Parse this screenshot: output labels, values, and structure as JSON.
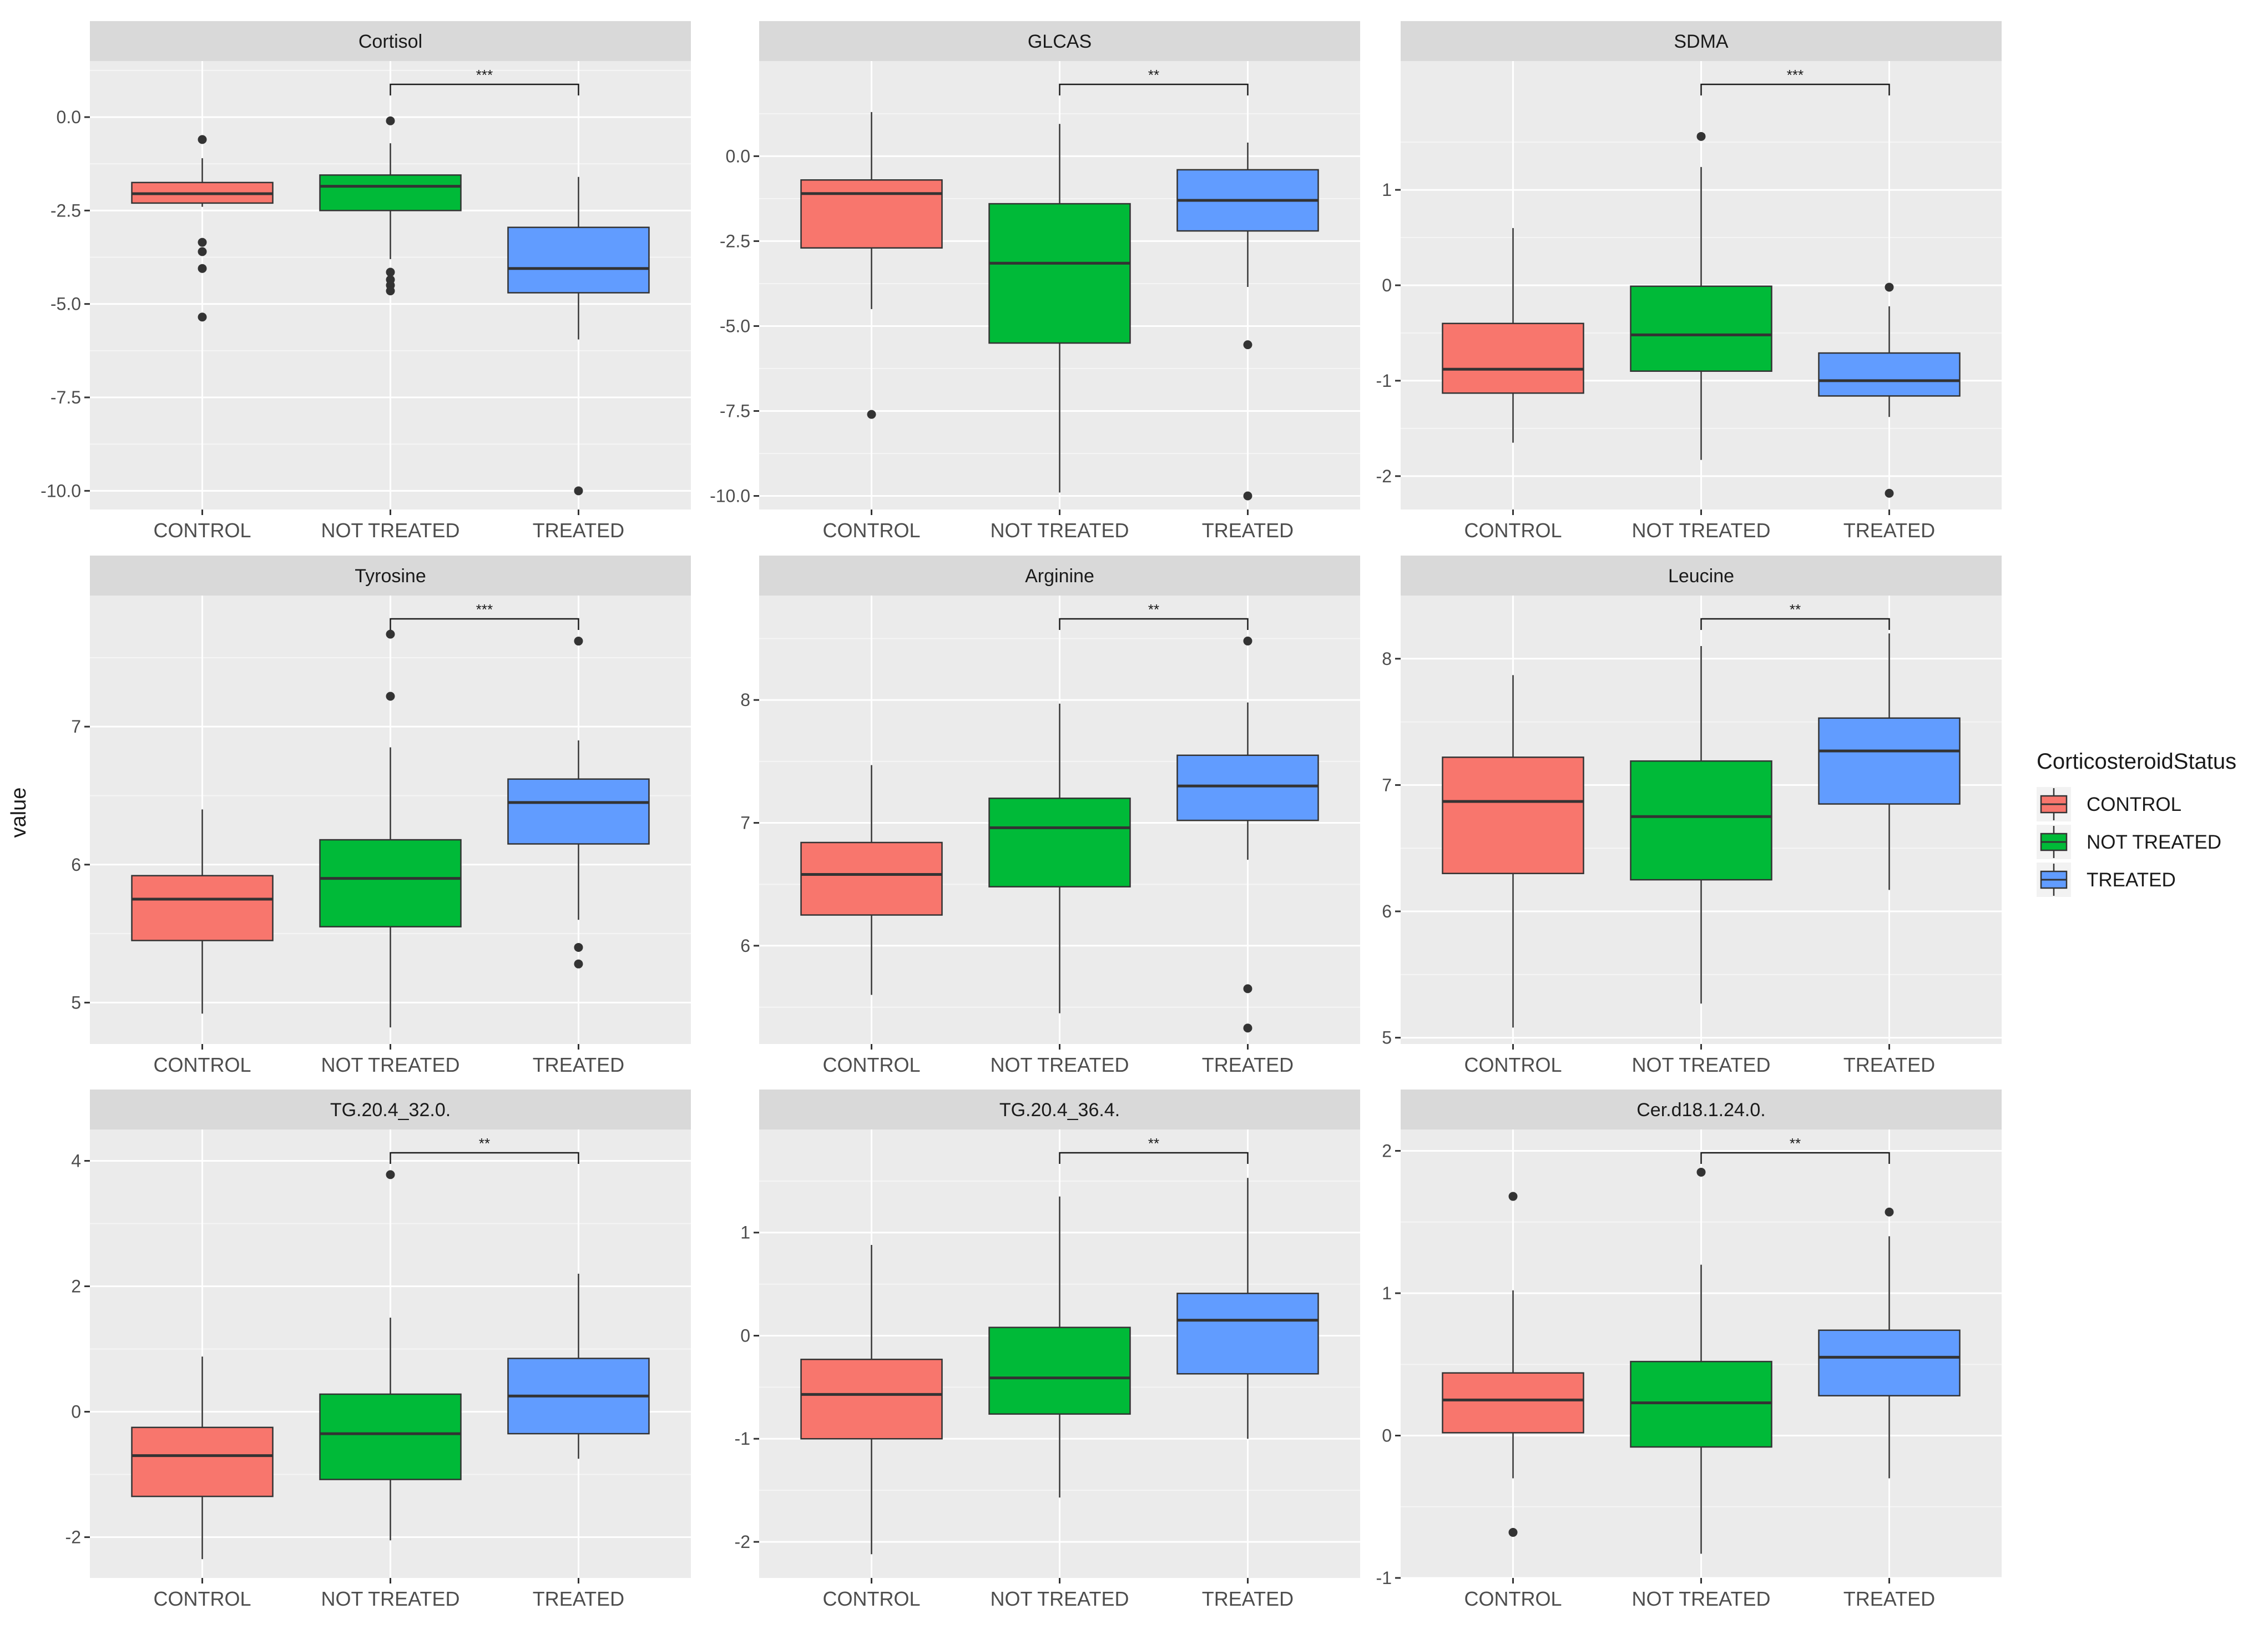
{
  "chart_data": {
    "type": "boxplot",
    "ylabel": "value",
    "legend": {
      "title": "CorticosteroidStatus",
      "placement": "right",
      "entries": [
        "CONTROL",
        "NOT TREATED",
        "TREATED"
      ]
    },
    "categories": [
      "CONTROL",
      "NOT TREATED",
      "TREATED"
    ],
    "colors": {
      "CONTROL": "#F8766D",
      "NOT TREATED": "#00BA38",
      "TREATED": "#619CFF",
      "panel_bg": "#EBEBEB",
      "strip_bg": "#D9D9D9",
      "grid": "#FFFFFF"
    },
    "panels": [
      {
        "title": "Cortisol",
        "ylim": [
          -10.5,
          1.5
        ],
        "yticks": [
          0,
          -2.5,
          -5,
          -7.5,
          -10
        ],
        "ytick_labels": [
          "0.0",
          "-2.5",
          "-5.0",
          "-7.5",
          "-10.0"
        ],
        "significance": {
          "from": "NOT TREATED",
          "to": "TREATED",
          "label": "***"
        },
        "boxes": [
          {
            "group": "CONTROL",
            "q1": -2.3,
            "median": -2.05,
            "q3": -1.75,
            "whisker_low": -2.4,
            "whisker_high": -1.1,
            "outliers": [
              -0.6,
              -3.35,
              -3.6,
              -4.05,
              -5.35
            ]
          },
          {
            "group": "NOT TREATED",
            "q1": -2.5,
            "median": -1.85,
            "q3": -1.55,
            "whisker_low": -3.8,
            "whisker_high": -0.7,
            "outliers": [
              -0.1,
              -4.15,
              -4.35,
              -4.5,
              -4.65
            ]
          },
          {
            "group": "TREATED",
            "q1": -4.7,
            "median": -4.05,
            "q3": -2.95,
            "whisker_low": -5.95,
            "whisker_high": -1.6,
            "outliers": [
              -10.0
            ]
          }
        ]
      },
      {
        "title": "GLCAS",
        "ylim": [
          -10.4,
          2.8
        ],
        "yticks": [
          0,
          -2.5,
          -5,
          -7.5,
          -10
        ],
        "ytick_labels": [
          "0.0",
          "-2.5",
          "-5.0",
          "-7.5",
          "-10.0"
        ],
        "significance": {
          "from": "NOT TREATED",
          "to": "TREATED",
          "label": "**"
        },
        "boxes": [
          {
            "group": "CONTROL",
            "q1": -2.7,
            "median": -1.1,
            "q3": -0.7,
            "whisker_low": -4.5,
            "whisker_high": 1.3,
            "outliers": [
              -7.6
            ]
          },
          {
            "group": "NOT TREATED",
            "q1": -5.5,
            "median": -3.15,
            "q3": -1.4,
            "whisker_low": -9.9,
            "whisker_high": 0.95,
            "outliers": []
          },
          {
            "group": "TREATED",
            "q1": -2.2,
            "median": -1.3,
            "q3": -0.4,
            "whisker_low": -3.85,
            "whisker_high": 0.4,
            "outliers": [
              -5.55,
              -10.0
            ]
          }
        ]
      },
      {
        "title": "SDMA",
        "ylim": [
          -2.35,
          2.35
        ],
        "yticks": [
          1,
          0,
          -1,
          -2
        ],
        "ytick_labels": [
          "1",
          "0",
          "-1",
          "-2"
        ],
        "significance": {
          "from": "NOT TREATED",
          "to": "TREATED",
          "label": "***"
        },
        "boxes": [
          {
            "group": "CONTROL",
            "q1": -1.13,
            "median": -0.88,
            "q3": -0.4,
            "whisker_low": -1.65,
            "whisker_high": 0.6,
            "outliers": []
          },
          {
            "group": "NOT TREATED",
            "q1": -0.9,
            "median": -0.52,
            "q3": -0.01,
            "whisker_low": -1.83,
            "whisker_high": 1.24,
            "outliers": [
              1.56
            ]
          },
          {
            "group": "TREATED",
            "q1": -1.16,
            "median": -1.0,
            "q3": -0.71,
            "whisker_low": -1.38,
            "whisker_high": -0.22,
            "outliers": [
              -0.02,
              -2.18
            ]
          }
        ]
      },
      {
        "title": "Tyrosine",
        "ylim": [
          4.7,
          7.95
        ],
        "yticks": [
          7,
          6,
          5
        ],
        "ytick_labels": [
          "7",
          "6",
          "5"
        ],
        "significance": {
          "from": "NOT TREATED",
          "to": "TREATED",
          "label": "***"
        },
        "boxes": [
          {
            "group": "CONTROL",
            "q1": 5.45,
            "median": 5.75,
            "q3": 5.92,
            "whisker_low": 4.92,
            "whisker_high": 6.4,
            "outliers": []
          },
          {
            "group": "NOT TREATED",
            "q1": 5.55,
            "median": 5.9,
            "q3": 6.18,
            "whisker_low": 4.82,
            "whisker_high": 6.85,
            "outliers": [
              7.67,
              7.22
            ]
          },
          {
            "group": "TREATED",
            "q1": 6.15,
            "median": 6.45,
            "q3": 6.62,
            "whisker_low": 5.6,
            "whisker_high": 6.9,
            "outliers": [
              7.62,
              5.4,
              5.28
            ]
          }
        ]
      },
      {
        "title": "Arginine",
        "ylim": [
          5.2,
          8.85
        ],
        "yticks": [
          8,
          7,
          6
        ],
        "ytick_labels": [
          "8",
          "7",
          "6"
        ],
        "significance": {
          "from": "NOT TREATED",
          "to": "TREATED",
          "label": "**"
        },
        "boxes": [
          {
            "group": "CONTROL",
            "q1": 6.25,
            "median": 6.58,
            "q3": 6.84,
            "whisker_low": 5.6,
            "whisker_high": 7.47,
            "outliers": []
          },
          {
            "group": "NOT TREATED",
            "q1": 6.48,
            "median": 6.96,
            "q3": 7.2,
            "whisker_low": 5.45,
            "whisker_high": 7.97,
            "outliers": []
          },
          {
            "group": "TREATED",
            "q1": 7.02,
            "median": 7.3,
            "q3": 7.55,
            "whisker_low": 6.7,
            "whisker_high": 7.98,
            "outliers": [
              8.48,
              5.65,
              5.33
            ]
          }
        ]
      },
      {
        "title": "Leucine",
        "ylim": [
          4.95,
          8.5
        ],
        "yticks": [
          8,
          7,
          6,
          5
        ],
        "ytick_labels": [
          "8",
          "7",
          "6",
          "5"
        ],
        "significance": {
          "from": "NOT TREATED",
          "to": "TREATED",
          "label": "**"
        },
        "boxes": [
          {
            "group": "CONTROL",
            "q1": 6.3,
            "median": 6.87,
            "q3": 7.22,
            "whisker_low": 5.08,
            "whisker_high": 7.87,
            "outliers": []
          },
          {
            "group": "NOT TREATED",
            "q1": 6.25,
            "median": 6.75,
            "q3": 7.19,
            "whisker_low": 5.27,
            "whisker_high": 8.1,
            "outliers": []
          },
          {
            "group": "TREATED",
            "q1": 6.85,
            "median": 7.27,
            "q3": 7.53,
            "whisker_low": 6.17,
            "whisker_high": 8.2,
            "outliers": []
          }
        ]
      },
      {
        "title": "TG.20.4_32.0.",
        "ylim": [
          -2.65,
          4.5
        ],
        "yticks": [
          4,
          2,
          0,
          -2
        ],
        "ytick_labels": [
          "4",
          "2",
          "0",
          "-2"
        ],
        "significance": {
          "from": "NOT TREATED",
          "to": "TREATED",
          "label": "**"
        },
        "boxes": [
          {
            "group": "CONTROL",
            "q1": -1.35,
            "median": -0.7,
            "q3": -0.25,
            "whisker_low": -2.35,
            "whisker_high": 0.88,
            "outliers": []
          },
          {
            "group": "NOT TREATED",
            "q1": -1.08,
            "median": -0.35,
            "q3": 0.28,
            "whisker_low": -2.05,
            "whisker_high": 1.5,
            "outliers": [
              3.78
            ]
          },
          {
            "group": "TREATED",
            "q1": -0.35,
            "median": 0.25,
            "q3": 0.85,
            "whisker_low": -0.75,
            "whisker_high": 2.2,
            "outliers": []
          }
        ]
      },
      {
        "title": "TG.20.4_36.4.",
        "ylim": [
          -2.35,
          2.0
        ],
        "yticks": [
          1,
          0,
          -1,
          -2
        ],
        "ytick_labels": [
          "1",
          "0",
          "-1",
          "-2"
        ],
        "significance": {
          "from": "NOT TREATED",
          "to": "TREATED",
          "label": "**"
        },
        "boxes": [
          {
            "group": "CONTROL",
            "q1": -1.0,
            "median": -0.57,
            "q3": -0.23,
            "whisker_low": -2.12,
            "whisker_high": 0.88,
            "outliers": []
          },
          {
            "group": "NOT TREATED",
            "q1": -0.76,
            "median": -0.41,
            "q3": 0.08,
            "whisker_low": -1.57,
            "whisker_high": 1.35,
            "outliers": []
          },
          {
            "group": "TREATED",
            "q1": -0.37,
            "median": 0.15,
            "q3": 0.41,
            "whisker_low": -1.0,
            "whisker_high": 1.53,
            "outliers": []
          }
        ]
      },
      {
        "title": "Cer.d18.1.24.0.",
        "ylim": [
          -1.0,
          2.15
        ],
        "yticks": [
          2,
          1,
          0,
          -1
        ],
        "ytick_labels": [
          "2",
          "1",
          "0",
          "-1"
        ],
        "significance": {
          "from": "NOT TREATED",
          "to": "TREATED",
          "label": "**"
        },
        "boxes": [
          {
            "group": "CONTROL",
            "q1": 0.02,
            "median": 0.25,
            "q3": 0.44,
            "whisker_low": -0.3,
            "whisker_high": 1.02,
            "outliers": [
              1.68,
              -0.68
            ]
          },
          {
            "group": "NOT TREATED",
            "q1": -0.08,
            "median": 0.23,
            "q3": 0.52,
            "whisker_low": -0.83,
            "whisker_high": 1.2,
            "outliers": [
              1.85
            ]
          },
          {
            "group": "TREATED",
            "q1": 0.28,
            "median": 0.55,
            "q3": 0.74,
            "whisker_low": -0.3,
            "whisker_high": 1.4,
            "outliers": [
              1.57
            ]
          }
        ]
      }
    ]
  }
}
